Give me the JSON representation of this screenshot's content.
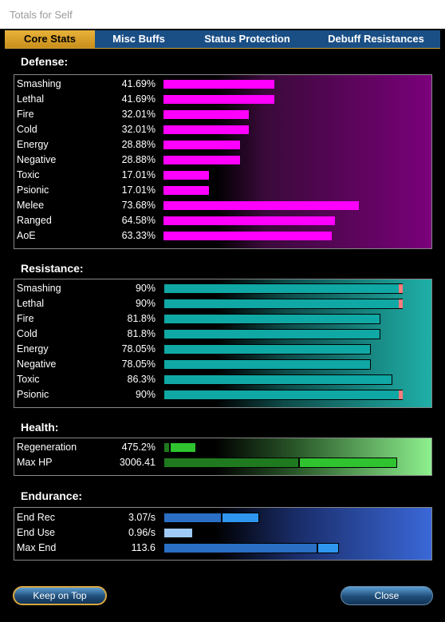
{
  "window": {
    "title": "Totals for Self"
  },
  "tabs": [
    {
      "label": "Core Stats",
      "active": true
    },
    {
      "label": "Misc Buffs",
      "active": false
    },
    {
      "label": "Status Protection",
      "active": false
    },
    {
      "label": "Debuff Resistances",
      "active": false
    }
  ],
  "defense": {
    "title": "Defense:",
    "color": "#ff00ff",
    "rows": [
      {
        "label": "Smashing",
        "value": "41.69%",
        "fill": 0.4169
      },
      {
        "label": "Lethal",
        "value": "41.69%",
        "fill": 0.4169
      },
      {
        "label": "Fire",
        "value": "32.01%",
        "fill": 0.3201
      },
      {
        "label": "Cold",
        "value": "32.01%",
        "fill": 0.3201
      },
      {
        "label": "Energy",
        "value": "28.88%",
        "fill": 0.2888
      },
      {
        "label": "Negative",
        "value": "28.88%",
        "fill": 0.2888
      },
      {
        "label": "Toxic",
        "value": "17.01%",
        "fill": 0.1701
      },
      {
        "label": "Psionic",
        "value": "17.01%",
        "fill": 0.1701
      },
      {
        "label": "Melee",
        "value": "73.68%",
        "fill": 0.7368
      },
      {
        "label": "Ranged",
        "value": "64.58%",
        "fill": 0.6458
      },
      {
        "label": "AoE",
        "value": "63.33%",
        "fill": 0.6333
      }
    ]
  },
  "resistance": {
    "title": "Resistance:",
    "color": "#0fa8a4",
    "cap_color": "#ff7b7b",
    "rows": [
      {
        "label": "Smashing",
        "value": "90%",
        "fill": 0.9,
        "capped": true
      },
      {
        "label": "Lethal",
        "value": "90%",
        "fill": 0.9,
        "capped": true
      },
      {
        "label": "Fire",
        "value": "81.8%",
        "fill": 0.818,
        "capped": false
      },
      {
        "label": "Cold",
        "value": "81.8%",
        "fill": 0.818,
        "capped": false
      },
      {
        "label": "Energy",
        "value": "78.05%",
        "fill": 0.7805,
        "capped": false
      },
      {
        "label": "Negative",
        "value": "78.05%",
        "fill": 0.7805,
        "capped": false
      },
      {
        "label": "Toxic",
        "value": "86.3%",
        "fill": 0.863,
        "capped": false
      },
      {
        "label": "Psionic",
        "value": "90%",
        "fill": 0.9,
        "capped": true
      }
    ]
  },
  "health": {
    "title": "Health:",
    "rows": [
      {
        "label": "Regeneration",
        "value": "475.2%",
        "base": 0.025,
        "bonus": 0.1
      },
      {
        "label": "Max HP",
        "value": "3006.41",
        "base": 0.51,
        "bonus": 0.37
      }
    ],
    "base_color": "#1f7a1f",
    "bonus_color": "#2fc42f"
  },
  "endurance": {
    "title": "Endurance:",
    "rows": [
      {
        "label": "End Rec",
        "value": "3.07/s",
        "base": 0.22,
        "bonus": 0.14,
        "base_color": "#2a6fc4",
        "bonus_color": "#2f96f0"
      },
      {
        "label": "End Use",
        "value": "0.96/s",
        "base": 0.0,
        "bonus": 0.11,
        "base_color": "#2a6fc4",
        "bonus_color": "#9ecaf5"
      },
      {
        "label": "Max End",
        "value": "113.6",
        "base": 0.58,
        "bonus": 0.08,
        "base_color": "#2a6fc4",
        "bonus_color": "#2f96f0"
      }
    ]
  },
  "buttons": {
    "keep_on_top": "Keep on Top",
    "close": "Close"
  }
}
